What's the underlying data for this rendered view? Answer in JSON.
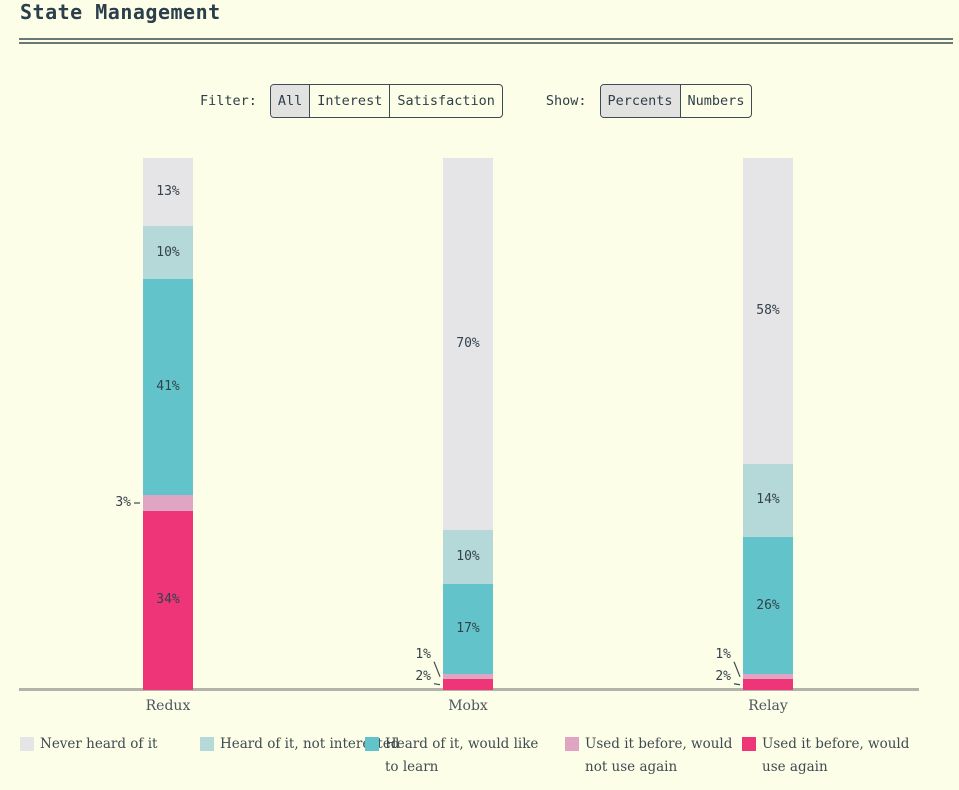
{
  "header": {
    "title": "State Management"
  },
  "controls": {
    "filter": {
      "label": "Filter:",
      "options": [
        "All",
        "Interest",
        "Satisfaction"
      ],
      "selected": "All"
    },
    "show": {
      "label": "Show:",
      "options": [
        "Percents",
        "Numbers"
      ],
      "selected": "Percents"
    }
  },
  "colors": {
    "background": "#fdfee8",
    "text_dark": "#2e3e4a",
    "axis": "#b3b3ab",
    "accent": "#ed3577"
  },
  "chart_data": {
    "type": "bar",
    "stacked": true,
    "grid": false,
    "legend_position": "bottom",
    "value_suffix": "%",
    "categories": [
      "Redux",
      "Mobx",
      "Relay"
    ],
    "series": [
      {
        "name": "Never heard of it",
        "color": "#e5e4e7",
        "values": [
          13,
          70,
          58
        ]
      },
      {
        "name": "Heard of it, not interested",
        "color": "#b5d9d8",
        "values": [
          10,
          10,
          14
        ]
      },
      {
        "name": "Heard of it, would like to learn",
        "color": "#62c4ca",
        "values": [
          41,
          17,
          26
        ]
      },
      {
        "name": "Used it before, would not use again",
        "color": "#dfa5c3",
        "values": [
          3,
          1,
          1
        ]
      },
      {
        "name": "Used it before, would use again",
        "color": "#ed3577",
        "values": [
          34,
          2,
          2
        ]
      }
    ]
  }
}
